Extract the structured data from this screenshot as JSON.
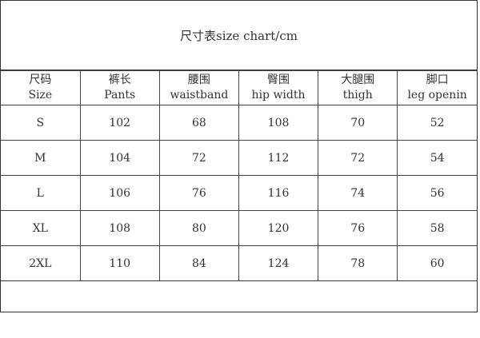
{
  "title": "尺寸表size chart/cm",
  "headers": [
    {
      "cn": "尺码",
      "en": "Size"
    },
    {
      "cn": "裤长",
      "en": "Pants"
    },
    {
      "cn": "腰围",
      "en": "waistband"
    },
    {
      "cn": "臀围",
      "en": "hip width"
    },
    {
      "cn": "大腿围",
      "en": "thigh"
    },
    {
      "cn": "脚口",
      "en": "leg openin"
    }
  ],
  "rows": [
    [
      "S",
      "102",
      "68",
      "108",
      "70",
      "52"
    ],
    [
      "M",
      "104",
      "72",
      "112",
      "72",
      "54"
    ],
    [
      "L",
      "106",
      "76",
      "116",
      "74",
      "56"
    ],
    [
      "XL",
      "108",
      "80",
      "120",
      "76",
      "58"
    ],
    [
      "2XL",
      "110",
      "84",
      "124",
      "78",
      "60"
    ]
  ]
}
